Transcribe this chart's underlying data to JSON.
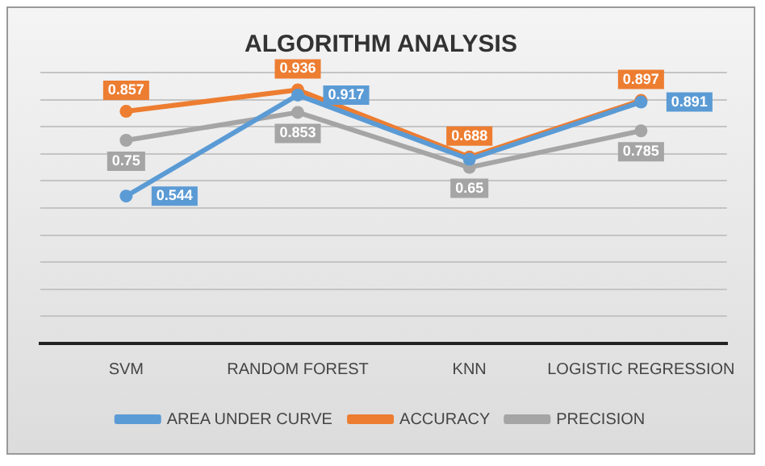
{
  "chart_data": {
    "type": "line",
    "title": "ALGORITHM ANALYSIS",
    "categories": [
      "SVM",
      "RANDOM FOREST",
      "KNN",
      "LOGISTIC REGRESSION"
    ],
    "series": [
      {
        "name": "AREA UNDER CURVE",
        "color": "#5b9bd5",
        "values": [
          0.544,
          0.917,
          0.68,
          0.891
        ],
        "value_labels": [
          "0.544",
          "0.917",
          null,
          "0.891"
        ]
      },
      {
        "name": "ACCURACY",
        "color": "#ed7d31",
        "values": [
          0.857,
          0.936,
          0.688,
          0.897
        ],
        "value_labels": [
          "0.857",
          "0.936",
          "0.688",
          "0.897"
        ]
      },
      {
        "name": "PRECISION",
        "color": "#a5a5a5",
        "values": [
          0.75,
          0.853,
          0.65,
          0.785
        ],
        "value_labels": [
          "0.75",
          "0.853",
          "0.65",
          "0.785"
        ]
      }
    ],
    "ylim": [
      0,
      1
    ],
    "yticks": [
      {
        "value": 0,
        "label": null
      },
      {
        "value": 0.1,
        "label": null
      },
      {
        "value": 0.2,
        "label": null
      },
      {
        "value": 0.3,
        "label": null
      },
      {
        "value": 0.4,
        "label": null
      },
      {
        "value": 0.5,
        "label": null
      },
      {
        "value": 0.6,
        "label": null
      },
      {
        "value": 0.7,
        "label": null
      },
      {
        "value": 0.8,
        "label": null
      },
      {
        "value": 0.9,
        "label": null
      },
      {
        "value": 1,
        "label": null
      }
    ],
    "grid": "y",
    "legend": "bottom",
    "marker": "circle",
    "line_style": "solid"
  }
}
